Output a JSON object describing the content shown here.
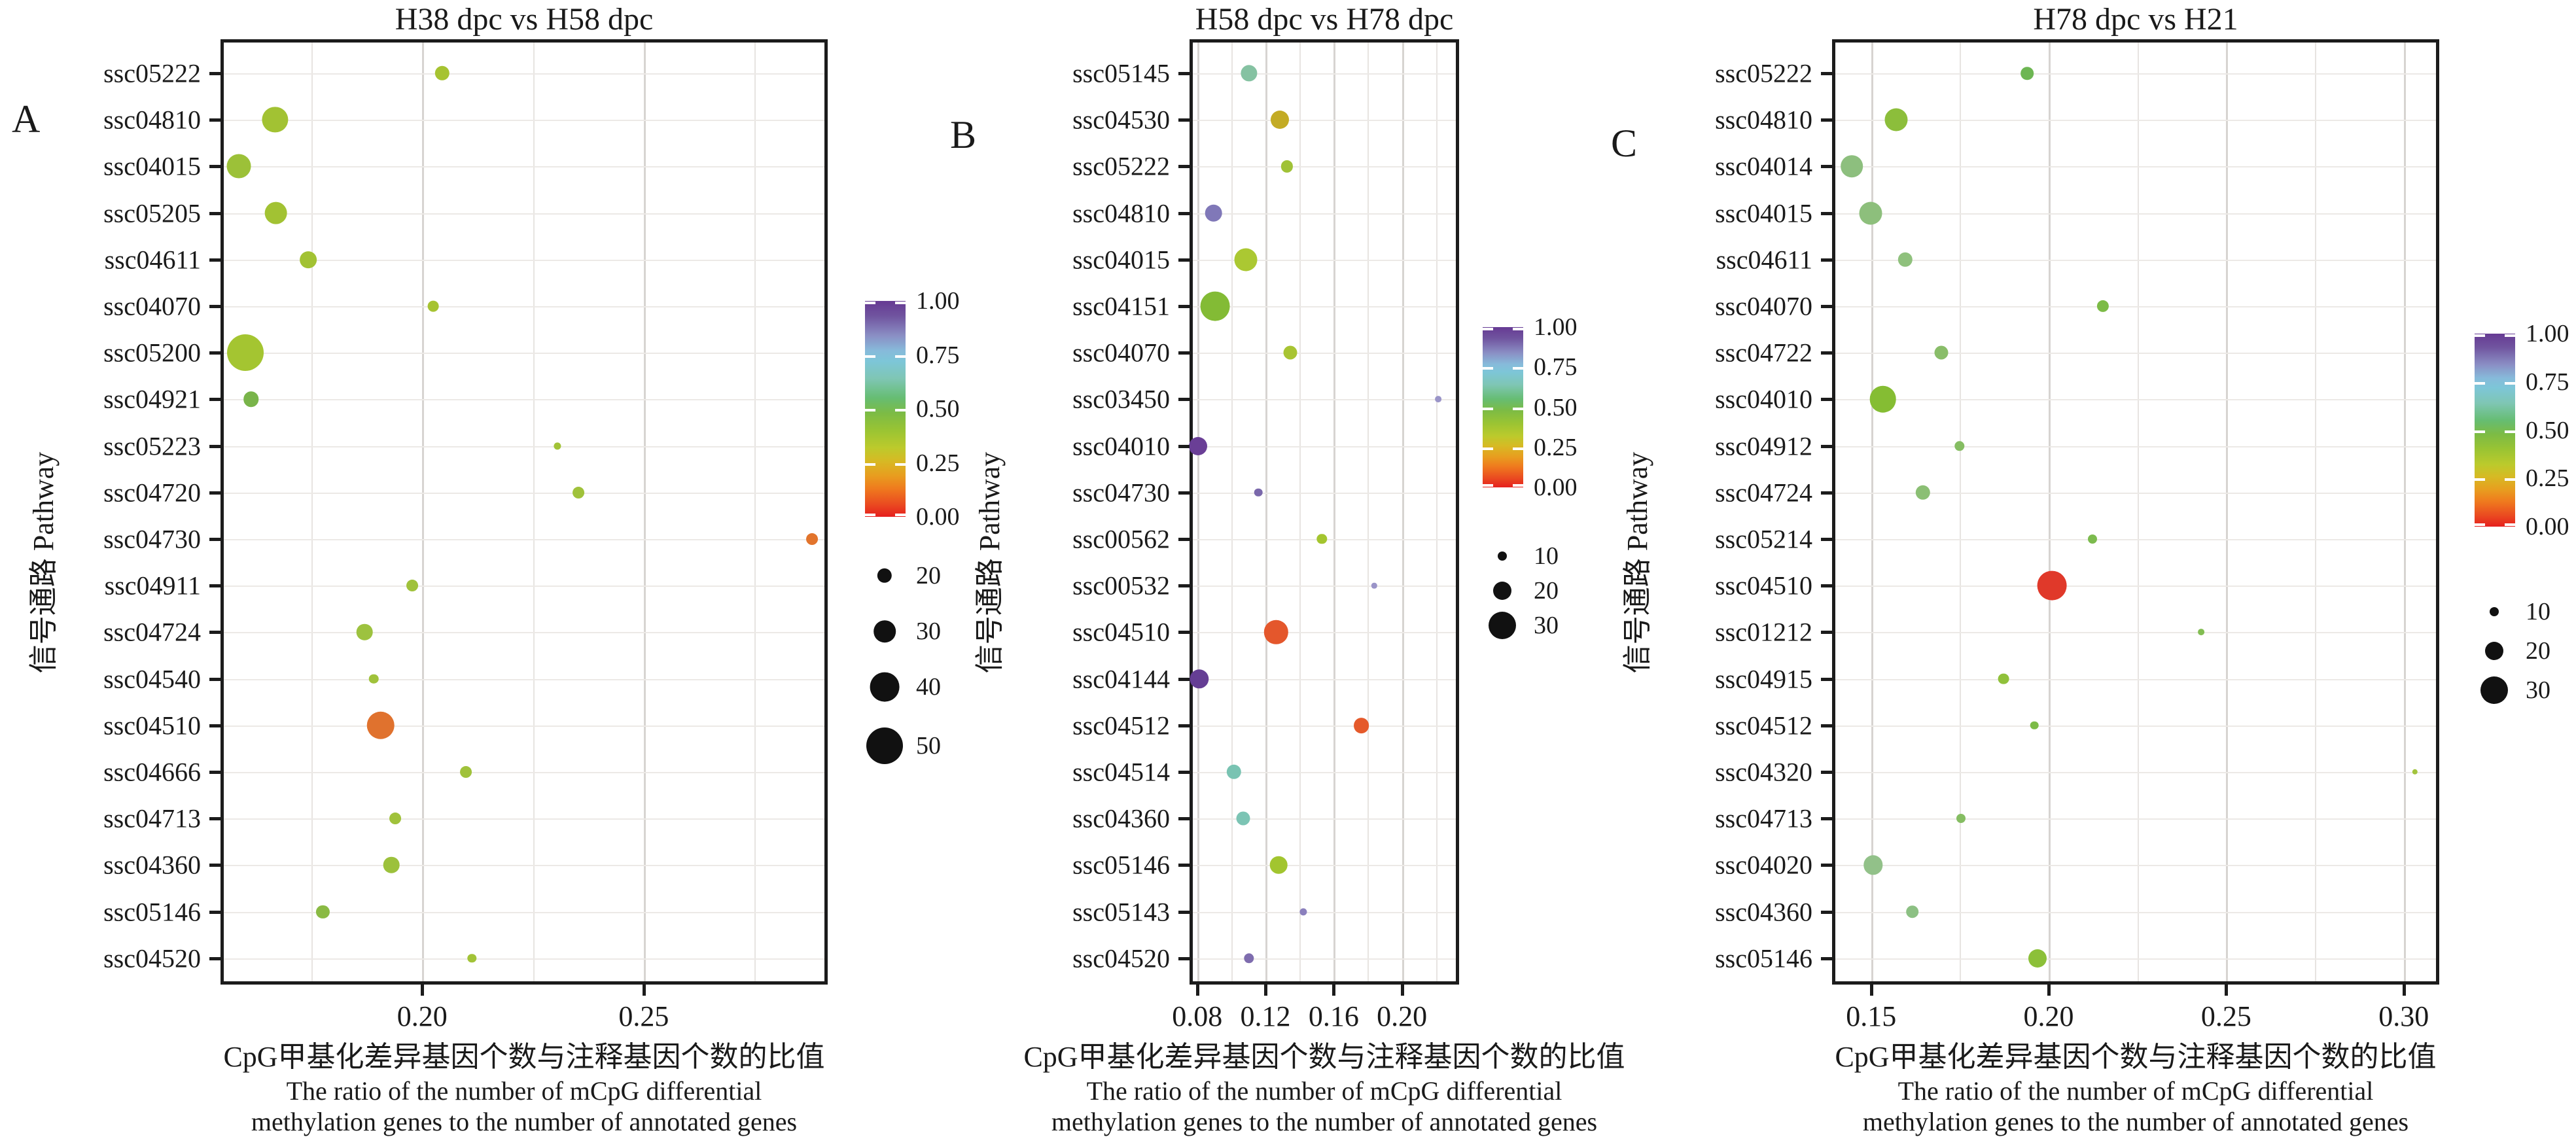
{
  "figure": {
    "y_axis_title": "信号通路 Pathway",
    "x_axis_title_cn": "CpG甲基化差异基因个数与注释基因个数的比值",
    "x_axis_title_en1": "The ratio of the number of mCpG differential",
    "x_axis_title_en2": "methylation genes to the number of annotated genes",
    "color_scale_ticks": [
      "1.00",
      "0.75",
      "0.50",
      "0.25",
      "0.00"
    ],
    "colors": {
      "axis": "#1c1c1c",
      "grid_minor": "#e7e4e1",
      "grid_major": "#d7d4d1",
      "scale_top_purple": "#663a93",
      "scale_mid_green": "#7cbb45",
      "scale_bottom_red": "#e61f1e"
    }
  },
  "chart_data": [
    {
      "type": "scatter",
      "panel_letter": "A",
      "title": "H38 dpc vs H58 dpc",
      "ylabel": "信号通路 Pathway",
      "xlabel_lines": [
        "CpG甲基化差异基因个数与注释基因个数的比值",
        "The ratio of the number of mCpG differential",
        "methylation genes to the number of annotated genes"
      ],
      "xlim": [
        0.1545,
        0.2915
      ],
      "x_tick_values": [
        0.2,
        0.25
      ],
      "x_tick_labels": [
        "0.20",
        "0.25"
      ],
      "x_grid_values": [
        0.175,
        0.2,
        0.225,
        0.25,
        0.275
      ],
      "size_legend": [
        20,
        30,
        40,
        50
      ],
      "color_legend_ticks": [
        "1.00",
        "0.75",
        "0.50",
        "0.25",
        "0.00"
      ],
      "categories": [
        "ssc05222",
        "ssc04810",
        "ssc04015",
        "ssc05205",
        "ssc04611",
        "ssc04070",
        "ssc05200",
        "ssc04921",
        "ssc05223",
        "ssc04720",
        "ssc04730",
        "ssc04911",
        "ssc04724",
        "ssc04540",
        "ssc04510",
        "ssc04666",
        "ssc04713",
        "ssc04360",
        "ssc05146",
        "ssc04520"
      ],
      "points": [
        {
          "pathway": "ssc05222",
          "ratio": 0.2045,
          "count": 20,
          "q": 0.3,
          "color": "#a6c331"
        },
        {
          "pathway": "ssc04810",
          "ratio": 0.1668,
          "count": 35,
          "q": 0.3,
          "color": "#a2c233"
        },
        {
          "pathway": "ssc04015",
          "ratio": 0.1587,
          "count": 33,
          "q": 0.32,
          "color": "#9cc138"
        },
        {
          "pathway": "ssc05205",
          "ratio": 0.167,
          "count": 31,
          "q": 0.3,
          "color": "#a2c233"
        },
        {
          "pathway": "ssc04611",
          "ratio": 0.1743,
          "count": 23,
          "q": 0.3,
          "color": "#a2c233"
        },
        {
          "pathway": "ssc04070",
          "ratio": 0.2025,
          "count": 15,
          "q": 0.3,
          "color": "#a6c331"
        },
        {
          "pathway": "ssc05200",
          "ratio": 0.1601,
          "count": 50,
          "q": 0.28,
          "color": "#a4c531"
        },
        {
          "pathway": "ssc04921",
          "ratio": 0.1614,
          "count": 21,
          "q": 0.45,
          "color": "#79b44a"
        },
        {
          "pathway": "ssc05223",
          "ratio": 0.2305,
          "count": 10,
          "q": 0.3,
          "color": "#a2c337"
        },
        {
          "pathway": "ssc04720",
          "ratio": 0.2353,
          "count": 16,
          "q": 0.32,
          "color": "#a0c23b"
        },
        {
          "pathway": "ssc04730",
          "ratio": 0.288,
          "count": 16,
          "q": 0.05,
          "color": "#e2742c"
        },
        {
          "pathway": "ssc04911",
          "ratio": 0.1978,
          "count": 16,
          "q": 0.32,
          "color": "#a0c23b"
        },
        {
          "pathway": "ssc04724",
          "ratio": 0.187,
          "count": 22,
          "q": 0.33,
          "color": "#9dc23f"
        },
        {
          "pathway": "ssc04540",
          "ratio": 0.1891,
          "count": 13,
          "q": 0.32,
          "color": "#a0c23b"
        },
        {
          "pathway": "ssc04510",
          "ratio": 0.1906,
          "count": 38,
          "q": 0.05,
          "color": "#e0722e"
        },
        {
          "pathway": "ssc04666",
          "ratio": 0.2099,
          "count": 16,
          "q": 0.32,
          "color": "#a0c23b"
        },
        {
          "pathway": "ssc04713",
          "ratio": 0.1939,
          "count": 16,
          "q": 0.32,
          "color": "#a0c23b"
        },
        {
          "pathway": "ssc04360",
          "ratio": 0.1931,
          "count": 22,
          "q": 0.33,
          "color": "#9cc13c"
        },
        {
          "pathway": "ssc05146",
          "ratio": 0.1776,
          "count": 18,
          "q": 0.4,
          "color": "#8aba44"
        },
        {
          "pathway": "ssc04520",
          "ratio": 0.2112,
          "count": 12,
          "q": 0.3,
          "color": "#a2c337"
        }
      ]
    },
    {
      "type": "scatter",
      "panel_letter": "B",
      "title": "H58 dpc vs H78 dpc",
      "ylabel": "信号通路 Pathway",
      "xlabel_lines": [
        "CpG甲基化差异基因个数与注释基因个数的比值",
        "The ratio of the number of mCpG differential",
        "methylation genes to the number of annotated genes"
      ],
      "xlim": [
        0.0755,
        0.2335
      ],
      "x_tick_values": [
        0.08,
        0.12,
        0.16,
        0.2
      ],
      "x_tick_labels": [
        "0.08",
        "0.12",
        "0.16",
        "0.20"
      ],
      "x_grid_values": [
        0.08,
        0.1,
        0.12,
        0.14,
        0.16,
        0.18,
        0.2,
        0.22
      ],
      "size_legend": [
        10,
        20,
        30
      ],
      "color_legend_ticks": [
        "1.00",
        "0.75",
        "0.50",
        "0.25",
        "0.00"
      ],
      "categories": [
        "ssc05145",
        "ssc04530",
        "ssc05222",
        "ssc04810",
        "ssc04015",
        "ssc04151",
        "ssc04070",
        "ssc03450",
        "ssc04010",
        "ssc04730",
        "ssc00562",
        "ssc00532",
        "ssc04510",
        "ssc04144",
        "ssc04512",
        "ssc04514",
        "ssc04360",
        "ssc05146",
        "ssc05143",
        "ssc04520"
      ],
      "points": [
        {
          "pathway": "ssc05145",
          "ratio": 0.1104,
          "count": 18,
          "q": 0.55,
          "color": "#85c2a2"
        },
        {
          "pathway": "ssc04530",
          "ratio": 0.1285,
          "count": 20,
          "q": 0.22,
          "color": "#c3ab25"
        },
        {
          "pathway": "ssc05222",
          "ratio": 0.1327,
          "count": 13,
          "q": 0.3,
          "color": "#a0c237"
        },
        {
          "pathway": "ssc04810",
          "ratio": 0.0896,
          "count": 19,
          "q": 0.82,
          "color": "#8078b8"
        },
        {
          "pathway": "ssc04015",
          "ratio": 0.1085,
          "count": 25,
          "q": 0.3,
          "color": "#abc832"
        },
        {
          "pathway": "ssc04151",
          "ratio": 0.0904,
          "count": 32,
          "q": 0.38,
          "color": "#83bb35"
        },
        {
          "pathway": "ssc04070",
          "ratio": 0.1347,
          "count": 15,
          "q": 0.3,
          "color": "#a8c433"
        },
        {
          "pathway": "ssc03450",
          "ratio": 0.2213,
          "count": 7,
          "q": 0.8,
          "color": "#9a94c8"
        },
        {
          "pathway": "ssc04010",
          "ratio": 0.0804,
          "count": 20,
          "q": 1.0,
          "color": "#6a3f96"
        },
        {
          "pathway": "ssc04730",
          "ratio": 0.1158,
          "count": 9,
          "q": 0.75,
          "color": "#7a68ab"
        },
        {
          "pathway": "ssc00562",
          "ratio": 0.1531,
          "count": 11,
          "q": 0.3,
          "color": "#a4c52f"
        },
        {
          "pathway": "ssc00532",
          "ratio": 0.1838,
          "count": 6,
          "q": 0.8,
          "color": "#9a94c8"
        },
        {
          "pathway": "ssc04510",
          "ratio": 0.1262,
          "count": 26,
          "q": 0.04,
          "color": "#e4572c"
        },
        {
          "pathway": "ssc04144",
          "ratio": 0.0812,
          "count": 21,
          "q": 1.0,
          "color": "#653e94"
        },
        {
          "pathway": "ssc04512",
          "ratio": 0.1762,
          "count": 17,
          "q": 0.05,
          "color": "#e55a2b"
        },
        {
          "pathway": "ssc04514",
          "ratio": 0.1015,
          "count": 16,
          "q": 0.6,
          "color": "#79c3b2"
        },
        {
          "pathway": "ssc04360",
          "ratio": 0.1069,
          "count": 15,
          "q": 0.6,
          "color": "#7cc4b4"
        },
        {
          "pathway": "ssc05146",
          "ratio": 0.1277,
          "count": 19,
          "q": 0.3,
          "color": "#a2c52f"
        },
        {
          "pathway": "ssc05143",
          "ratio": 0.1423,
          "count": 8,
          "q": 0.78,
          "color": "#8b80bd"
        },
        {
          "pathway": "ssc04520",
          "ratio": 0.1104,
          "count": 11,
          "q": 0.75,
          "color": "#7e6cae"
        }
      ]
    },
    {
      "type": "scatter",
      "panel_letter": "C",
      "title": "H78 dpc vs H21",
      "ylabel": "信号通路 Pathway",
      "xlabel_lines": [
        "CpG甲基化差异基因个数与注释基因个数的比值",
        "The ratio of the number of mCpG differential",
        "methylation genes to the number of annotated genes"
      ],
      "xlim": [
        0.139,
        0.31
      ],
      "x_tick_values": [
        0.15,
        0.2,
        0.25,
        0.3
      ],
      "x_tick_labels": [
        "0.15",
        "0.20",
        "0.25",
        "0.30"
      ],
      "x_grid_values": [
        0.15,
        0.175,
        0.2,
        0.225,
        0.25,
        0.275,
        0.3
      ],
      "size_legend": [
        10,
        20,
        30
      ],
      "color_legend_ticks": [
        "1.00",
        "0.75",
        "0.50",
        "0.25",
        "0.00"
      ],
      "categories": [
        "ssc05222",
        "ssc04810",
        "ssc04014",
        "ssc04015",
        "ssc04611",
        "ssc04070",
        "ssc04722",
        "ssc04010",
        "ssc04912",
        "ssc04724",
        "ssc05214",
        "ssc04510",
        "ssc01212",
        "ssc04915",
        "ssc04512",
        "ssc04320",
        "ssc04713",
        "ssc04020",
        "ssc04360",
        "ssc05146"
      ],
      "points": [
        {
          "pathway": "ssc05222",
          "ratio": 0.194,
          "count": 14,
          "q": 0.45,
          "color": "#6db653"
        },
        {
          "pathway": "ssc04810",
          "ratio": 0.157,
          "count": 25,
          "q": 0.35,
          "color": "#8cbe3b"
        },
        {
          "pathway": "ssc04014",
          "ratio": 0.1446,
          "count": 24,
          "q": 0.5,
          "color": "#8dbf7e"
        },
        {
          "pathway": "ssc04015",
          "ratio": 0.1498,
          "count": 25,
          "q": 0.5,
          "color": "#8dbf7c"
        },
        {
          "pathway": "ssc04611",
          "ratio": 0.1596,
          "count": 16,
          "q": 0.5,
          "color": "#8fc17d"
        },
        {
          "pathway": "ssc04070",
          "ratio": 0.2153,
          "count": 13,
          "q": 0.4,
          "color": "#7cbb46"
        },
        {
          "pathway": "ssc04722",
          "ratio": 0.1697,
          "count": 15,
          "q": 0.47,
          "color": "#89bd69"
        },
        {
          "pathway": "ssc04010",
          "ratio": 0.1533,
          "count": 29,
          "q": 0.33,
          "color": "#85bd33"
        },
        {
          "pathway": "ssc04912",
          "ratio": 0.1749,
          "count": 11,
          "q": 0.47,
          "color": "#85bd62"
        },
        {
          "pathway": "ssc04724",
          "ratio": 0.1646,
          "count": 16,
          "q": 0.5,
          "color": "#8bbf74"
        },
        {
          "pathway": "ssc05214",
          "ratio": 0.2124,
          "count": 10,
          "q": 0.42,
          "color": "#7cbb4e"
        },
        {
          "pathway": "ssc04510",
          "ratio": 0.2009,
          "count": 32,
          "q": 0.01,
          "color": "#e0392a"
        },
        {
          "pathway": "ssc01212",
          "ratio": 0.243,
          "count": 7,
          "q": 0.42,
          "color": "#82bd52"
        },
        {
          "pathway": "ssc04915",
          "ratio": 0.1873,
          "count": 12,
          "q": 0.33,
          "color": "#90c13b"
        },
        {
          "pathway": "ssc04512",
          "ratio": 0.196,
          "count": 9,
          "q": 0.4,
          "color": "#7cbb47"
        },
        {
          "pathway": "ssc04320",
          "ratio": 0.3031,
          "count": 6,
          "q": 0.3,
          "color": "#a2c43d"
        },
        {
          "pathway": "ssc04713",
          "ratio": 0.1753,
          "count": 10,
          "q": 0.47,
          "color": "#85bd62"
        },
        {
          "pathway": "ssc04020",
          "ratio": 0.1506,
          "count": 21,
          "q": 0.52,
          "color": "#92c189"
        },
        {
          "pathway": "ssc04360",
          "ratio": 0.1616,
          "count": 14,
          "q": 0.5,
          "color": "#8cc083"
        },
        {
          "pathway": "ssc05146",
          "ratio": 0.1969,
          "count": 20,
          "q": 0.35,
          "color": "#8cc039"
        }
      ]
    }
  ]
}
